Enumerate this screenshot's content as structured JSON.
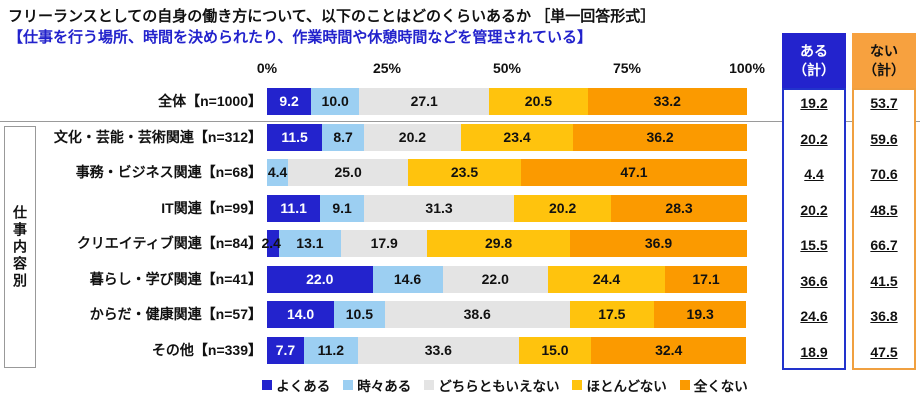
{
  "header": {
    "title": "フリーランスとしての自身の働き方について、以下のことはどのくらいあるか ［単一回答形式］",
    "subtitle": "【仕事を行う場所、時間を決められたり、作業時間や休憩時間などを管理されている】",
    "subtitle_color": "#2222CC"
  },
  "row_group_label": "仕事内容別",
  "summary_columns": {
    "aru": {
      "line1": "ある",
      "line2": "（計）",
      "header_bg": "#2323CD",
      "header_text": "#FFFFFF",
      "border_color": "#2233CC"
    },
    "nai": {
      "line1": "ない",
      "line2": "（計）",
      "header_bg": "#F7A13F",
      "header_text": "#111111",
      "border_color": "#F0A040"
    }
  },
  "chart_data": {
    "type": "bar",
    "stacked": true,
    "orientation": "horizontal",
    "xlim": [
      0,
      100
    ],
    "axis_ticks": [
      "0%",
      "25%",
      "50%",
      "75%",
      "100%"
    ],
    "grid": false,
    "legend_position": "bottom",
    "categories": [
      "全体【n=1000】",
      "文化・芸能・芸術関連【n=312】",
      "事務・ビジネス関連【n=68】",
      "IT関連【n=99】",
      "クリエイティブ関連【n=84】",
      "暮らし・学び関連【n=41】",
      "からだ・健康関連【n=57】",
      "その他【n=339】"
    ],
    "series": [
      {
        "name": "よくある",
        "color": "#2323CD",
        "label_color": "#FFFFFF",
        "values": [
          9.2,
          11.5,
          0,
          11.1,
          2.4,
          22.0,
          14.0,
          7.7
        ]
      },
      {
        "name": "時々ある",
        "color": "#9CCFF2",
        "label_color": "#111111",
        "values": [
          10.0,
          8.7,
          4.4,
          9.1,
          13.1,
          14.6,
          10.5,
          11.2
        ]
      },
      {
        "name": "どちらともいえない",
        "color": "#E4E4E4",
        "label_color": "#111111",
        "values": [
          27.1,
          20.2,
          25.0,
          31.3,
          17.9,
          22.0,
          38.6,
          33.6
        ]
      },
      {
        "name": "ほとんどない",
        "color": "#FFC30D",
        "label_color": "#111111",
        "values": [
          20.5,
          23.4,
          23.5,
          20.2,
          29.8,
          24.4,
          17.5,
          15.0
        ]
      },
      {
        "name": "全くない",
        "color": "#FB9A00",
        "label_color": "#111111",
        "values": [
          33.2,
          36.2,
          47.1,
          28.3,
          36.9,
          17.1,
          19.3,
          32.4
        ]
      }
    ],
    "aru_totals": [
      19.2,
      20.2,
      4.4,
      20.2,
      15.5,
      36.6,
      24.6,
      18.9
    ],
    "nai_totals": [
      53.7,
      59.6,
      70.6,
      48.5,
      66.7,
      41.5,
      36.8,
      47.5
    ]
  }
}
